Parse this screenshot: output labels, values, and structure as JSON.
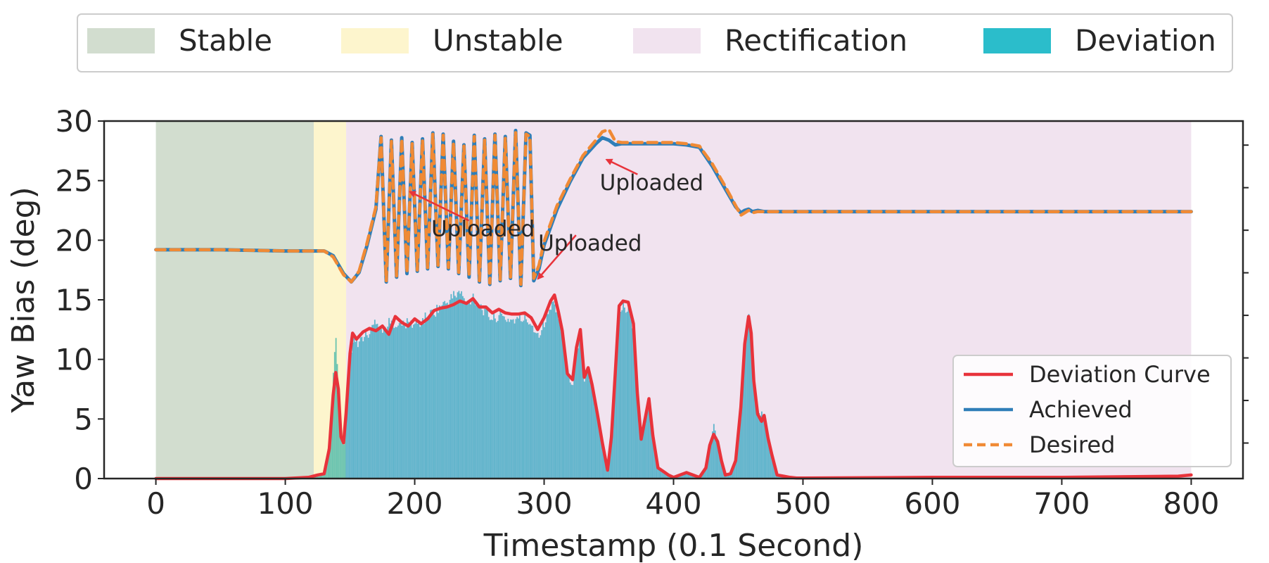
{
  "chart_data": {
    "type": "line",
    "xlabel": "Timestamp (0.1 Second)",
    "ylabel": "Yaw Bias (deg)",
    "xlim": [
      -40,
      840
    ],
    "ylim": [
      0,
      30
    ],
    "x_ticks": [
      0,
      100,
      200,
      300,
      400,
      500,
      600,
      700,
      800
    ],
    "y_ticks": [
      0,
      5,
      10,
      15,
      20,
      25,
      30
    ],
    "grid": false,
    "phases": [
      {
        "name": "Stable",
        "x0": 0,
        "x1": 122,
        "color": "#d2ddcf"
      },
      {
        "name": "Unstable",
        "x0": 122,
        "x1": 147,
        "color": "#fdf5cd"
      },
      {
        "name": "Rectification",
        "x0": 147,
        "x1": 800,
        "color": "#f1e3ef"
      }
    ],
    "top_legend": {
      "placement": "top-center",
      "entries": [
        {
          "label": "Stable",
          "color": "#d2ddcf"
        },
        {
          "label": "Unstable",
          "color": "#fdf5cd"
        },
        {
          "label": "Rectification",
          "color": "#f1e3ef"
        },
        {
          "label": "Deviation",
          "color": "#2bbdcb"
        }
      ]
    },
    "line_legend": {
      "placement": "lower-right",
      "entries": [
        {
          "label": "Deviation Curve",
          "color": "#e8333b",
          "style": "solid"
        },
        {
          "label": "Achieved",
          "color": "#2f7eb8",
          "style": "solid"
        },
        {
          "label": "Desired",
          "color": "#f08a35",
          "style": "dashed"
        }
      ]
    },
    "annotations": [
      {
        "text": "Uploaded",
        "point": [
          193,
          24.3
        ]
      },
      {
        "text": "Uploaded",
        "point": [
          292,
          17.0
        ]
      },
      {
        "text": "Uploaded",
        "point": [
          345,
          27.0
        ]
      }
    ],
    "series": [
      {
        "name": "Achieved",
        "color": "#2f7eb8",
        "x": [
          0,
          50,
          100,
          120,
          130,
          137,
          145,
          151,
          157,
          163,
          170,
          174,
          178,
          182,
          186,
          190,
          194,
          198,
          202,
          206,
          210,
          214,
          218,
          222,
          226,
          230,
          234,
          238,
          242,
          246,
          250,
          254,
          258,
          262,
          266,
          270,
          274,
          278,
          282,
          286,
          289,
          292,
          296,
          300,
          310,
          320,
          330,
          340,
          345,
          350,
          355,
          360,
          370,
          380,
          390,
          400,
          410,
          420,
          430,
          440,
          448,
          452,
          455,
          458,
          461,
          465,
          470,
          480,
          500,
          600,
          700,
          800
        ],
        "values": [
          19.2,
          19.2,
          19.1,
          19.1,
          19.1,
          18.7,
          17.2,
          16.5,
          17.3,
          19.5,
          22.6,
          28.7,
          16.5,
          28.4,
          16.9,
          28.6,
          17.2,
          28.2,
          17.4,
          28.5,
          17.6,
          29.0,
          17.8,
          28.9,
          17.6,
          28.3,
          17.2,
          28.0,
          16.9,
          28.8,
          16.5,
          28.5,
          16.3,
          28.9,
          16.6,
          28.7,
          16.8,
          29.2,
          16.2,
          29.0,
          28.8,
          16.6,
          17.6,
          19.6,
          22.6,
          24.9,
          26.9,
          28.1,
          28.6,
          28.4,
          28.0,
          28.1,
          28.1,
          28.1,
          28.1,
          28.1,
          28.0,
          27.8,
          26.2,
          24.3,
          22.8,
          22.3,
          22.5,
          22.6,
          22.4,
          22.5,
          22.4,
          22.4,
          22.4,
          22.4,
          22.4,
          22.4
        ]
      },
      {
        "name": "Desired",
        "color": "#f08a35",
        "x": [
          0,
          50,
          100,
          120,
          130,
          137,
          145,
          151,
          157,
          163,
          170,
          174,
          178,
          182,
          186,
          190,
          194,
          198,
          202,
          206,
          210,
          214,
          218,
          222,
          226,
          230,
          234,
          238,
          242,
          246,
          250,
          254,
          258,
          262,
          266,
          270,
          274,
          278,
          282,
          286,
          289,
          292,
          296,
          300,
          310,
          320,
          330,
          340,
          345,
          350,
          355,
          360,
          370,
          380,
          390,
          400,
          410,
          420,
          430,
          440,
          448,
          452,
          455,
          458,
          461,
          465,
          470,
          480,
          500,
          600,
          700,
          800
        ],
        "values": [
          19.2,
          19.2,
          19.1,
          19.1,
          19.1,
          18.6,
          17.1,
          16.5,
          17.4,
          19.7,
          22.8,
          28.6,
          16.6,
          28.3,
          17.0,
          28.5,
          17.3,
          28.1,
          17.5,
          28.4,
          17.7,
          28.9,
          17.9,
          28.8,
          17.7,
          28.2,
          17.3,
          27.9,
          17.0,
          28.7,
          16.6,
          28.4,
          16.4,
          28.8,
          16.7,
          28.6,
          16.9,
          29.1,
          16.3,
          28.9,
          28.7,
          16.8,
          17.9,
          19.9,
          22.9,
          25.1,
          27.1,
          28.4,
          29.1,
          29.3,
          28.3,
          28.2,
          28.2,
          28.2,
          28.2,
          28.2,
          28.1,
          27.9,
          26.4,
          24.5,
          22.9,
          22.1,
          22.3,
          22.5,
          22.3,
          22.4,
          22.4,
          22.4,
          22.4,
          22.4,
          22.4,
          22.4
        ]
      },
      {
        "name": "Deviation Curve",
        "color": "#e8333b",
        "x": [
          0,
          50,
          100,
          118,
          125,
          130,
          134,
          137,
          139,
          141,
          143,
          145,
          147,
          150,
          152,
          155,
          160,
          165,
          170,
          175,
          180,
          185,
          190,
          195,
          200,
          205,
          210,
          215,
          220,
          225,
          230,
          235,
          240,
          245,
          250,
          255,
          260,
          265,
          270,
          275,
          280,
          285,
          290,
          295,
          300,
          305,
          308,
          311,
          314,
          318,
          322,
          325,
          328,
          331,
          334,
          337,
          341,
          345,
          349,
          352,
          355,
          358,
          361,
          365,
          369,
          372,
          375,
          378,
          381,
          384,
          388,
          392,
          396,
          400,
          410,
          420,
          425,
          428,
          431,
          434,
          437,
          440,
          444,
          448,
          452,
          455,
          458,
          460,
          462,
          465,
          468,
          470,
          473,
          476,
          480,
          485,
          490,
          495,
          500,
          600,
          700,
          790,
          800
        ],
        "values": [
          0,
          0,
          0,
          0.1,
          0.3,
          0.4,
          2.5,
          7.0,
          8.9,
          7.5,
          3.5,
          3.0,
          5.5,
          10.5,
          12.2,
          11.7,
          12.3,
          12.6,
          12.4,
          12.8,
          12.1,
          13.6,
          13.1,
          12.8,
          13.4,
          13.0,
          13.4,
          14.1,
          14.3,
          14.4,
          14.6,
          14.9,
          14.7,
          15.1,
          14.4,
          14.4,
          13.9,
          14.2,
          13.9,
          13.8,
          13.8,
          13.9,
          13.5,
          12.5,
          13.5,
          14.9,
          15.4,
          14.0,
          12.4,
          8.8,
          8.3,
          11.0,
          12.5,
          8.5,
          9.3,
          7.9,
          5.5,
          3.0,
          0.7,
          3.5,
          8.9,
          14.5,
          14.9,
          14.8,
          13.0,
          7.2,
          3.3,
          5.0,
          6.7,
          3.6,
          0.9,
          0.6,
          0.3,
          0.1,
          0.5,
          0.1,
          0.9,
          2.8,
          3.7,
          3.1,
          1.5,
          0.3,
          0.4,
          1.5,
          6.0,
          11.3,
          13.6,
          12.2,
          8.2,
          5.4,
          4.8,
          5.3,
          3.4,
          2.0,
          0.3,
          0.2,
          0.1,
          0.05,
          0.05,
          0.1,
          0.1,
          0.2,
          0.3
        ]
      },
      {
        "name": "Deviation",
        "type": "bar",
        "color": "#2bbdcb",
        "x": [
          0,
          50,
          100,
          118,
          125,
          130,
          134,
          137,
          139,
          141,
          143,
          145,
          147,
          150,
          152,
          155,
          160,
          165,
          170,
          175,
          180,
          185,
          190,
          195,
          200,
          205,
          210,
          215,
          220,
          225,
          230,
          235,
          240,
          245,
          250,
          255,
          260,
          265,
          270,
          275,
          280,
          285,
          290,
          295,
          300,
          305,
          308,
          311,
          314,
          318,
          322,
          325,
          328,
          331,
          334,
          337,
          341,
          345,
          349,
          352,
          355,
          358,
          361,
          365,
          369,
          372,
          375,
          378,
          381,
          384,
          388,
          392,
          396,
          400,
          410,
          420,
          425,
          428,
          431,
          434,
          437,
          440,
          444,
          448,
          452,
          455,
          458,
          460,
          462,
          465,
          468,
          470,
          473,
          476,
          480,
          485,
          490,
          495,
          500,
          600,
          700,
          790,
          800
        ],
        "values": [
          0,
          0,
          0,
          0.1,
          0.3,
          0.4,
          3.2,
          9.0,
          12.5,
          7.5,
          3.5,
          3.0,
          5.5,
          10.5,
          12.2,
          11.7,
          12.3,
          12.6,
          13.9,
          12.8,
          13.5,
          13.6,
          13.4,
          13.5,
          13.4,
          13.6,
          14.2,
          14.5,
          15.0,
          15.3,
          15.9,
          16.2,
          15.1,
          15.9,
          15.1,
          14.4,
          13.9,
          14.2,
          13.9,
          13.8,
          13.8,
          13.9,
          13.5,
          12.5,
          13.5,
          14.9,
          15.4,
          14.0,
          12.4,
          8.8,
          8.3,
          11.0,
          12.5,
          8.5,
          9.3,
          7.9,
          5.5,
          3.0,
          0.7,
          3.5,
          8.9,
          14.5,
          14.9,
          14.8,
          13.0,
          7.2,
          3.3,
          5.0,
          6.7,
          3.6,
          0.9,
          0.6,
          0.3,
          0.1,
          0.5,
          0.1,
          0.9,
          2.8,
          4.9,
          3.1,
          1.5,
          0.3,
          0.4,
          1.5,
          6.0,
          11.3,
          14.2,
          12.2,
          8.2,
          5.4,
          5.8,
          5.3,
          3.4,
          2.0,
          0.3,
          0.2,
          0.1,
          0.05,
          0.05,
          0.1,
          0.1,
          0.2,
          0.3
        ]
      }
    ]
  }
}
